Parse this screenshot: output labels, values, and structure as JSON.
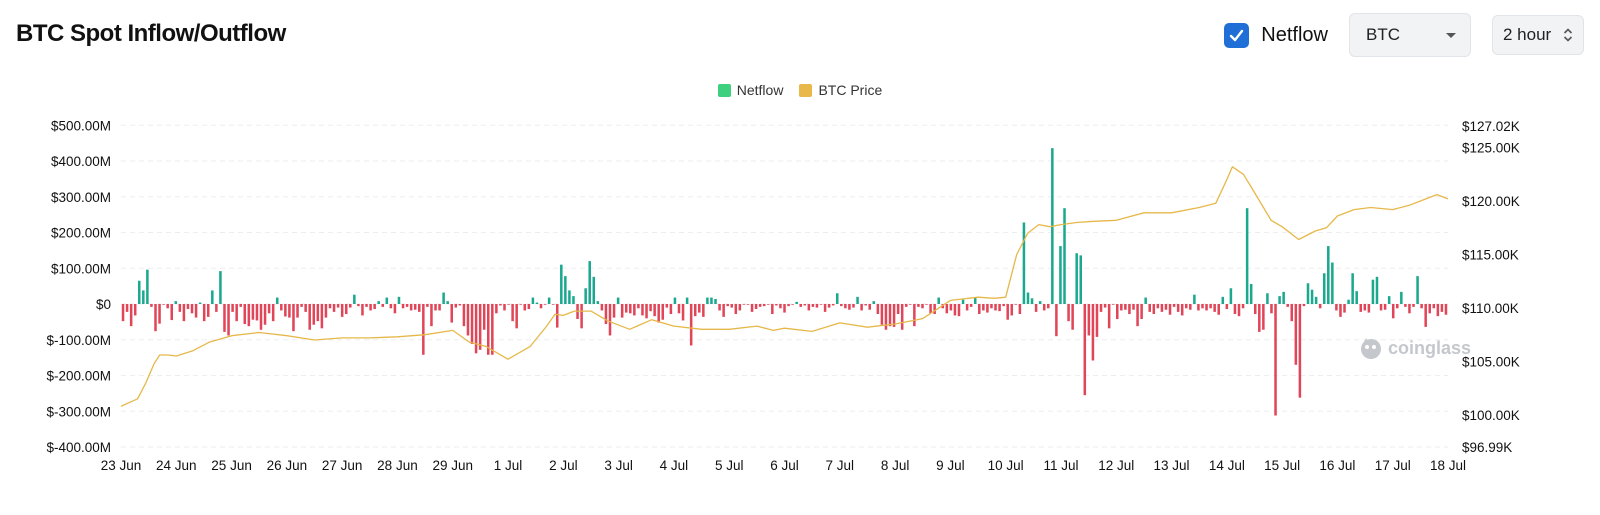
{
  "header": {
    "title": "BTC Spot Inflow/Outflow"
  },
  "controls": {
    "netflow_checkbox": {
      "label": "Netflow",
      "checked": true
    },
    "coin_select": {
      "value": "BTC"
    },
    "interval_select": {
      "value": "2 hour"
    }
  },
  "watermark": "coinglass",
  "colors": {
    "positive": "#1aa88e",
    "negative": "#e04558",
    "price": "#e6b84a",
    "legend_netflow": "#3ecf7f",
    "legend_price": "#e8b84b",
    "accent": "#1f6fd6"
  },
  "chart_data": {
    "type": "bar",
    "legend": [
      "Netflow",
      "BTC Price"
    ],
    "legend_position": "top-center",
    "grid": true,
    "x_ticks": [
      "23 Jun",
      "24 Jun",
      "25 Jun",
      "26 Jun",
      "27 Jun",
      "28 Jun",
      "29 Jun",
      "1 Jul",
      "2 Jul",
      "3 Jul",
      "4 Jul",
      "5 Jul",
      "6 Jul",
      "7 Jul",
      "8 Jul",
      "9 Jul",
      "10 Jul",
      "11 Jul",
      "12 Jul",
      "13 Jul",
      "14 Jul",
      "15 Jul",
      "16 Jul",
      "17 Jul",
      "18 Jul"
    ],
    "y_left_ticks": [
      "$500.00M",
      "$400.00M",
      "$300.00M",
      "$200.00M",
      "$100.00M",
      "$0",
      "$-100.00M",
      "$-200.00M",
      "$-300.00M",
      "$-400.00M"
    ],
    "y_left_range_millions": [
      -400,
      500
    ],
    "y_right_ticks": [
      "$127.02K",
      "$125.00K",
      "$120.00K",
      "$115.00K",
      "$110.00K",
      "$105.00K",
      "$100.00K",
      "$96.99K"
    ],
    "y_right_range_thousands": [
      96.99,
      127.02
    ],
    "series": [
      {
        "name": "Netflow",
        "unit": "million USD",
        "kind": "bar",
        "values": [
          -48,
          -22,
          -62,
          -32,
          65,
          38,
          96,
          -8,
          -76,
          -55,
          -2,
          -12,
          -45,
          8,
          -22,
          -48,
          -14,
          -26,
          -38,
          4,
          -48,
          -36,
          38,
          -22,
          92,
          -78,
          -88,
          -22,
          -48,
          -8,
          -56,
          -62,
          -44,
          -46,
          -72,
          -58,
          -26,
          -48,
          18,
          -18,
          -35,
          -38,
          -76,
          -38,
          -8,
          -22,
          -72,
          -58,
          -48,
          -68,
          -38,
          -12,
          -22,
          -10,
          -36,
          -28,
          -10,
          26,
          -6,
          -32,
          -8,
          -18,
          -14,
          8,
          -8,
          18,
          -12,
          -26,
          20,
          -12,
          -8,
          -18,
          -16,
          -22,
          -142,
          -8,
          -62,
          -18,
          -18,
          32,
          8,
          -52,
          -10,
          -4,
          -62,
          -88,
          -112,
          -138,
          -128,
          -72,
          -142,
          -142,
          -26,
          -4,
          -18,
          -2,
          -48,
          -68,
          -2,
          -18,
          -14,
          18,
          4,
          -12,
          -2,
          18,
          -2,
          -66,
          110,
          78,
          38,
          22,
          -42,
          -68,
          44,
          120,
          76,
          8,
          -18,
          -56,
          -88,
          -38,
          18,
          -38,
          -24,
          -26,
          -32,
          -12,
          -32,
          -40,
          -20,
          -34,
          -52,
          -44,
          -10,
          -28,
          18,
          -26,
          -46,
          18,
          -116,
          -34,
          -24,
          -36,
          18,
          18,
          14,
          -18,
          -36,
          -6,
          -10,
          -28,
          -18,
          -2,
          -2,
          -22,
          -14,
          -8,
          -6,
          -2,
          -28,
          -4,
          -12,
          -24,
          -6,
          -2,
          6,
          -8,
          -4,
          -18,
          -8,
          -10,
          -2,
          -22,
          -10,
          -4,
          30,
          -6,
          -12,
          -16,
          -10,
          20,
          -18,
          -4,
          -16,
          8,
          -28,
          -58,
          -72,
          -62,
          -64,
          -28,
          -72,
          -8,
          -2,
          -62,
          -8,
          -12,
          -2,
          -26,
          -28,
          18,
          -12,
          -26,
          -18,
          -32,
          -34,
          12,
          -18,
          -8,
          18,
          -28,
          -18,
          -24,
          -12,
          -18,
          -20,
          -6,
          -44,
          -32,
          -2,
          -28,
          228,
          32,
          16,
          -22,
          8,
          -18,
          -12,
          436,
          -90,
          162,
          268,
          -48,
          -72,
          142,
          136,
          -255,
          -88,
          -158,
          -92,
          -22,
          -10,
          -68,
          -2,
          -42,
          -18,
          -16,
          -28,
          -16,
          -62,
          -42,
          18,
          -22,
          -28,
          -12,
          -22,
          -16,
          -30,
          -8,
          -22,
          -32,
          -12,
          -16,
          26,
          -18,
          -12,
          -18,
          -12,
          -22,
          -30,
          20,
          -14,
          44,
          -28,
          -34,
          -12,
          268,
          56,
          -28,
          -78,
          -72,
          30,
          -26,
          -312,
          22,
          34,
          -8,
          -48,
          -170,
          -262,
          -6,
          58,
          40,
          20,
          -12,
          86,
          162,
          116,
          -18,
          -36,
          -24,
          12,
          86,
          36,
          -22,
          -18,
          -24,
          68,
          76,
          -18,
          -16,
          22,
          -40,
          -12,
          34,
          -8,
          -26,
          -8,
          78,
          -12,
          -64,
          -26,
          -12,
          -34,
          -22,
          -30
        ]
      },
      {
        "name": "BTC Price",
        "unit": "thousand USD",
        "kind": "line",
        "x": [
          0,
          0.3,
          0.45,
          0.6,
          0.7,
          0.85,
          1.0,
          1.3,
          1.6,
          2.0,
          2.5,
          3.0,
          3.5,
          4.0,
          4.5,
          5.0,
          5.5,
          6.0,
          6.3,
          6.6,
          7.0,
          7.4,
          7.7,
          7.85,
          8.0,
          8.2,
          8.5,
          8.8,
          9.2,
          9.6,
          10.0,
          10.5,
          11.0,
          11.5,
          11.8,
          12.0,
          12.5,
          13.0,
          13.5,
          14.0,
          14.5,
          15.0,
          15.5,
          15.8,
          16.0,
          16.2,
          16.4,
          16.6,
          16.8,
          17.0,
          17.3,
          17.6,
          18.0,
          18.5,
          19.0,
          19.5,
          19.8,
          20.0,
          20.1,
          20.3,
          20.5,
          20.8,
          21.0,
          21.3,
          21.6,
          21.8,
          22.0,
          22.3,
          22.6,
          23.0,
          23.3,
          23.5,
          23.8,
          24.0
        ],
        "y": [
          100.8,
          101.5,
          103.0,
          104.8,
          105.6,
          105.6,
          105.5,
          106.0,
          106.8,
          107.4,
          107.7,
          107.4,
          107.0,
          107.2,
          107.2,
          107.3,
          107.5,
          107.9,
          106.8,
          106.4,
          105.2,
          106.4,
          108.3,
          109.4,
          109.3,
          109.7,
          109.7,
          108.8,
          108.0,
          108.9,
          108.3,
          108.0,
          108.0,
          108.3,
          107.9,
          108.1,
          107.8,
          108.6,
          108.2,
          108.5,
          109.0,
          110.7,
          111.0,
          110.9,
          111.0,
          115.0,
          117.0,
          117.8,
          117.6,
          117.8,
          118.0,
          118.1,
          118.2,
          118.9,
          118.9,
          119.4,
          119.8,
          122.0,
          123.2,
          122.5,
          120.8,
          118.2,
          117.6,
          116.4,
          117.2,
          117.5,
          118.6,
          119.2,
          119.4,
          119.2,
          119.6,
          120.0,
          120.6,
          120.2
        ]
      }
    ]
  }
}
